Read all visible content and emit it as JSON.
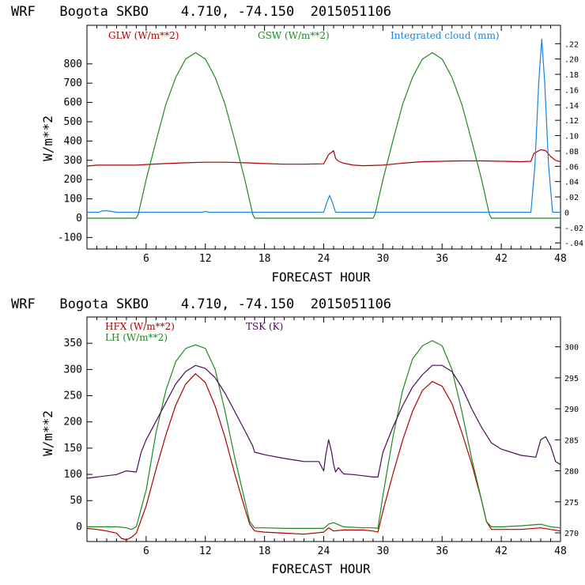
{
  "chart_data": [
    {
      "type": "line",
      "title": "WRF   Bogota SKBO    4.710, -74.150  2015051106",
      "xlabel": "FORECAST HOUR",
      "ylabel": "W/m**2",
      "xlim": [
        0,
        48
      ],
      "ylim": [
        -160,
        1000
      ],
      "x_ticks": [
        6,
        12,
        18,
        24,
        30,
        36,
        42,
        48
      ],
      "y_ticks": [
        -100,
        0,
        100,
        200,
        300,
        400,
        500,
        600,
        700,
        800
      ],
      "y2label": "Integrated cloud (mm)",
      "y2lim": [
        -0.048,
        0.244
      ],
      "y2_ticks": [
        -0.04,
        -0.02,
        0,
        0.02,
        0.04,
        0.06,
        0.08,
        0.1,
        0.12,
        0.14,
        0.16,
        0.18,
        0.2,
        0.22
      ],
      "y2_tick_labels": [
        "-.04",
        "-.02",
        "0",
        ".02",
        ".04",
        ".06",
        ".08",
        ".10",
        ".12",
        ".14",
        ".16",
        ".18",
        ".20",
        ".22"
      ],
      "series": [
        {
          "name": "GLW (W/m**2)",
          "color": "#b00000",
          "axis": "left",
          "x": [
            0,
            1,
            2,
            3,
            4,
            5,
            6,
            8,
            10,
            12,
            14,
            16,
            18,
            20,
            22,
            24,
            24.5,
            25,
            25.2,
            25.5,
            26,
            27,
            28,
            30,
            32,
            34,
            36,
            38,
            40,
            42,
            44,
            45,
            45.3,
            46,
            46.5,
            47,
            47.5,
            48
          ],
          "values": [
            270,
            275,
            275,
            275,
            275,
            275,
            278,
            283,
            287,
            290,
            290,
            287,
            283,
            280,
            280,
            282,
            330,
            350,
            310,
            295,
            285,
            275,
            272,
            275,
            285,
            293,
            295,
            297,
            297,
            295,
            293,
            295,
            335,
            355,
            350,
            320,
            300,
            292
          ]
        },
        {
          "name": "GSW (W/m**2)",
          "color": "#1e8a1e",
          "axis": "left",
          "x": [
            0,
            5,
            5.2,
            6,
            7,
            8,
            9,
            10,
            11,
            12,
            13,
            14,
            15,
            16,
            16.8,
            17,
            24,
            29,
            29.2,
            30,
            31,
            32,
            33,
            34,
            35,
            36,
            37,
            38,
            39,
            40,
            40.8,
            41,
            48
          ],
          "values": [
            0,
            0,
            20,
            200,
            400,
            590,
            730,
            825,
            858,
            825,
            730,
            590,
            400,
            200,
            20,
            0,
            0,
            0,
            20,
            200,
            400,
            590,
            730,
            825,
            858,
            825,
            730,
            590,
            400,
            200,
            20,
            0,
            0
          ]
        },
        {
          "name": "Integrated cloud (mm)",
          "color": "#1a82e0",
          "axis": "right",
          "x": [
            0,
            1.2,
            1.5,
            2,
            2.5,
            3,
            11.6,
            12,
            12.4,
            24,
            24.3,
            24.6,
            24.9,
            25.2,
            45,
            45.4,
            45.8,
            46.1,
            46.4,
            46.8,
            47.2,
            48
          ],
          "values": [
            0,
            0,
            0.0015,
            0.002,
            0.001,
            0,
            0,
            0.001,
            0,
            0,
            0.012,
            0.022,
            0.012,
            0,
            0,
            0.06,
            0.17,
            0.2257,
            0.17,
            0.06,
            0,
            0
          ]
        }
      ]
    },
    {
      "type": "line",
      "title": "WRF   Bogota SKBO    4.710, -74.150  2015051106",
      "xlabel": "FORECAST HOUR",
      "ylabel": "W/m**2",
      "xlim": [
        0,
        48
      ],
      "ylim": [
        -28,
        400
      ],
      "x_ticks": [
        6,
        12,
        18,
        24,
        30,
        36,
        42,
        48
      ],
      "y_ticks": [
        0,
        50,
        100,
        150,
        200,
        250,
        300,
        350
      ],
      "y2label": "TSK (K)",
      "y2lim": [
        268.6,
        304.8
      ],
      "y2_ticks": [
        270,
        275,
        280,
        285,
        290,
        295,
        300
      ],
      "series": [
        {
          "name": "HFX (W/m**2)",
          "color": "#b00000",
          "axis": "left",
          "x": [
            0,
            1,
            2,
            3,
            3.5,
            4,
            4.5,
            5,
            6,
            7,
            8,
            9,
            10,
            11,
            12,
            13,
            14,
            15,
            16,
            16.5,
            17,
            18,
            20,
            22,
            24,
            24.5,
            25,
            26,
            28,
            29,
            29.5,
            30,
            31,
            32,
            33,
            34,
            35,
            36,
            37,
            38,
            39,
            40,
            40.5,
            41,
            42,
            44,
            46,
            47,
            48
          ],
          "values": [
            -3,
            -5,
            -8,
            -12,
            -22,
            -25,
            -20,
            -12,
            40,
            110,
            175,
            232,
            272,
            292,
            275,
            230,
            170,
            100,
            35,
            5,
            -8,
            -10,
            -12,
            -14,
            -10,
            -2,
            -8,
            -6,
            -6,
            -8,
            -10,
            30,
            100,
            165,
            220,
            260,
            277,
            268,
            235,
            180,
            120,
            50,
            10,
            -5,
            -5,
            -5,
            -2,
            -5,
            -8
          ]
        },
        {
          "name": "LH (W/m**2)",
          "color": "#1e8a1e",
          "axis": "left",
          "x": [
            0,
            1,
            2,
            3,
            4,
            4.5,
            5,
            6,
            7,
            8,
            9,
            10,
            11,
            12,
            13,
            14,
            15,
            16,
            16.5,
            17,
            18,
            20,
            22,
            24,
            24.5,
            25,
            26,
            28,
            29,
            29.5,
            30,
            31,
            32,
            33,
            34,
            35,
            36,
            37,
            38,
            39,
            40,
            40.5,
            41,
            42,
            44,
            46,
            47,
            48
          ],
          "values": [
            0,
            0,
            0,
            0,
            -2,
            -5,
            0,
            70,
            180,
            260,
            315,
            340,
            347,
            340,
            300,
            220,
            130,
            50,
            10,
            -2,
            -2,
            -3,
            -3,
            -3,
            5,
            8,
            0,
            -2,
            -2,
            -3,
            60,
            170,
            260,
            320,
            345,
            355,
            345,
            300,
            220,
            130,
            50,
            10,
            0,
            0,
            2,
            5,
            0,
            -2
          ]
        },
        {
          "name": "TSK (K)",
          "color": "#4b0a5a",
          "axis": "right",
          "x": [
            0,
            1,
            2,
            3,
            4,
            5,
            5.5,
            6,
            7,
            8,
            9,
            10,
            11,
            12,
            13,
            14,
            15,
            16,
            16.8,
            17,
            18,
            20,
            22,
            23.5,
            24,
            24.2,
            24.5,
            24.8,
            25,
            25.2,
            25.5,
            26,
            27,
            28,
            29,
            29.5,
            30,
            31,
            32,
            33,
            34,
            35,
            36,
            37,
            38,
            39,
            40,
            41,
            42,
            44,
            45.5,
            46,
            46.5,
            47,
            47.5,
            48
          ],
          "values": [
            278.8,
            279.0,
            279.2,
            279.4,
            280.0,
            279.8,
            283.0,
            285.0,
            288.0,
            291.0,
            294.0,
            296.0,
            297.0,
            296.5,
            295.0,
            292.5,
            289.5,
            286.5,
            284.0,
            283.0,
            282.6,
            282.0,
            281.5,
            281.5,
            280.0,
            282.5,
            285.0,
            283.0,
            281.0,
            279.8,
            280.5,
            279.5,
            279.4,
            279.2,
            279.0,
            279.0,
            283.0,
            287.0,
            290.5,
            293.5,
            295.5,
            297.0,
            297.0,
            296.0,
            293.5,
            290.0,
            287.0,
            284.5,
            283.5,
            282.5,
            282.2,
            285.0,
            285.5,
            284.0,
            281.5,
            281.0
          ]
        }
      ]
    }
  ]
}
